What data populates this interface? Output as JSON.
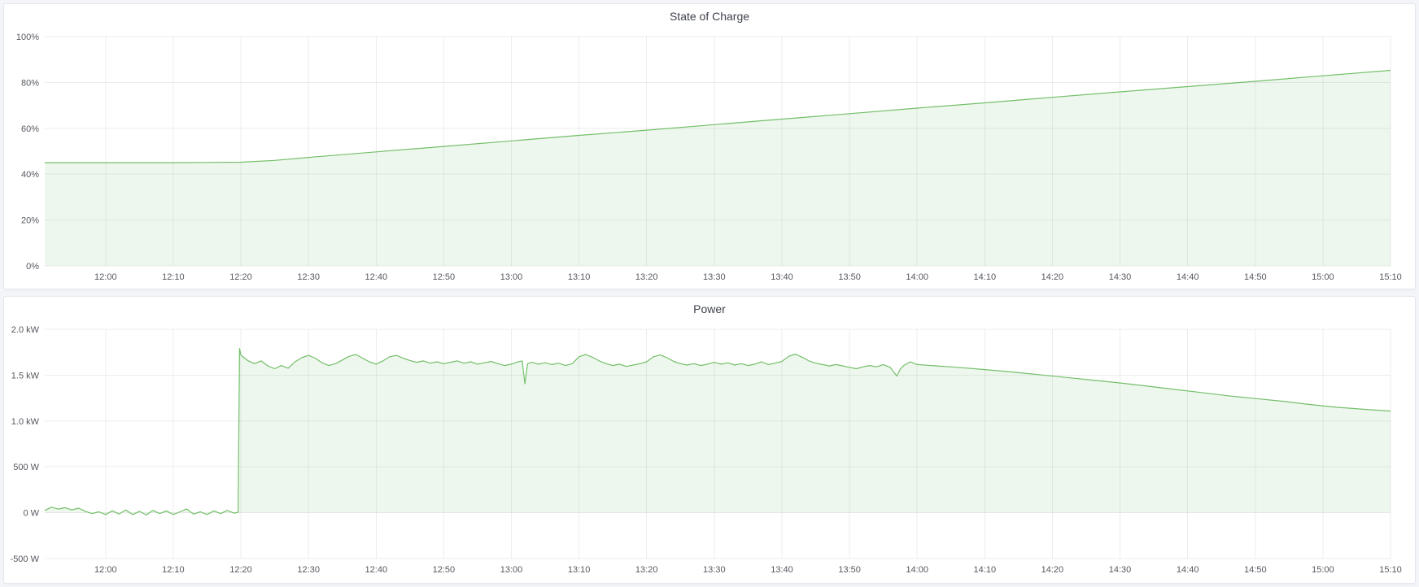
{
  "accent_color": "#73bf69",
  "panel_background": "#ffffff",
  "page_background": "#f4f5f9",
  "chart_data": [
    {
      "type": "area",
      "title": "State of Charge",
      "xlabel": "",
      "ylabel": "",
      "grid": true,
      "legend_position": "none",
      "line_color": "#73bf69",
      "fill_color": "rgba(115,191,105,0.12)",
      "xlim": [
        711,
        910
      ],
      "ylim": [
        0,
        100
      ],
      "fill_baseline": 0,
      "yticks": [
        {
          "v": 0,
          "label": "0%"
        },
        {
          "v": 20,
          "label": "20%"
        },
        {
          "v": 40,
          "label": "40%"
        },
        {
          "v": 60,
          "label": "60%"
        },
        {
          "v": 80,
          "label": "80%"
        },
        {
          "v": 100,
          "label": "100%"
        }
      ],
      "xticks": [
        {
          "v": 720,
          "label": "12:00"
        },
        {
          "v": 730,
          "label": "12:10"
        },
        {
          "v": 740,
          "label": "12:20"
        },
        {
          "v": 750,
          "label": "12:30"
        },
        {
          "v": 760,
          "label": "12:40"
        },
        {
          "v": 770,
          "label": "12:50"
        },
        {
          "v": 780,
          "label": "13:00"
        },
        {
          "v": 790,
          "label": "13:10"
        },
        {
          "v": 800,
          "label": "13:20"
        },
        {
          "v": 810,
          "label": "13:30"
        },
        {
          "v": 820,
          "label": "13:40"
        },
        {
          "v": 830,
          "label": "13:50"
        },
        {
          "v": 840,
          "label": "14:00"
        },
        {
          "v": 850,
          "label": "14:10"
        },
        {
          "v": 860,
          "label": "14:20"
        },
        {
          "v": 870,
          "label": "14:30"
        },
        {
          "v": 880,
          "label": "14:40"
        },
        {
          "v": 890,
          "label": "14:50"
        },
        {
          "v": 900,
          "label": "15:00"
        },
        {
          "v": 910,
          "label": "15:10"
        }
      ],
      "series": [
        {
          "name": "State of Charge (%)",
          "points": [
            [
              711,
              45
            ],
            [
              720,
              45
            ],
            [
              730,
              45
            ],
            [
              740,
              45.2
            ],
            [
              745,
              46
            ],
            [
              750,
              47.3
            ],
            [
              760,
              49.7
            ],
            [
              770,
              52.1
            ],
            [
              780,
              54.5
            ],
            [
              790,
              56.9
            ],
            [
              800,
              59.2
            ],
            [
              810,
              61.6
            ],
            [
              820,
              64.0
            ],
            [
              830,
              66.4
            ],
            [
              840,
              68.8
            ],
            [
              850,
              71.1
            ],
            [
              860,
              73.5
            ],
            [
              870,
              75.9
            ],
            [
              880,
              78.2
            ],
            [
              890,
              80.5
            ],
            [
              900,
              82.9
            ],
            [
              910,
              85.3
            ]
          ]
        }
      ]
    },
    {
      "type": "area",
      "title": "Power",
      "xlabel": "",
      "ylabel": "",
      "grid": true,
      "legend_position": "none",
      "line_color": "#73bf69",
      "fill_color": "rgba(115,191,105,0.12)",
      "xlim": [
        711,
        910
      ],
      "ylim": [
        -500,
        2000
      ],
      "fill_baseline": 0,
      "yticks": [
        {
          "v": -500,
          "label": "-500 W"
        },
        {
          "v": 0,
          "label": "0 W"
        },
        {
          "v": 500,
          "label": "500 W"
        },
        {
          "v": 1000,
          "label": "1.0 kW"
        },
        {
          "v": 1500,
          "label": "1.5 kW"
        },
        {
          "v": 2000,
          "label": "2.0 kW"
        }
      ],
      "xticks": [
        {
          "v": 720,
          "label": "12:00"
        },
        {
          "v": 730,
          "label": "12:10"
        },
        {
          "v": 740,
          "label": "12:20"
        },
        {
          "v": 750,
          "label": "12:30"
        },
        {
          "v": 760,
          "label": "12:40"
        },
        {
          "v": 770,
          "label": "12:50"
        },
        {
          "v": 780,
          "label": "13:00"
        },
        {
          "v": 790,
          "label": "13:10"
        },
        {
          "v": 800,
          "label": "13:20"
        },
        {
          "v": 810,
          "label": "13:30"
        },
        {
          "v": 820,
          "label": "13:40"
        },
        {
          "v": 830,
          "label": "13:50"
        },
        {
          "v": 840,
          "label": "14:00"
        },
        {
          "v": 850,
          "label": "14:10"
        },
        {
          "v": 860,
          "label": "14:20"
        },
        {
          "v": 870,
          "label": "14:30"
        },
        {
          "v": 880,
          "label": "14:40"
        },
        {
          "v": 890,
          "label": "14:50"
        },
        {
          "v": 900,
          "label": "15:00"
        },
        {
          "v": 910,
          "label": "15:10"
        }
      ],
      "series": [
        {
          "name": "Power (W)",
          "points": [
            [
              711,
              25
            ],
            [
              712,
              60
            ],
            [
              713,
              40
            ],
            [
              714,
              55
            ],
            [
              715,
              30
            ],
            [
              716,
              50
            ],
            [
              717,
              15
            ],
            [
              718,
              -10
            ],
            [
              719,
              10
            ],
            [
              720,
              -20
            ],
            [
              721,
              20
            ],
            [
              722,
              -15
            ],
            [
              723,
              30
            ],
            [
              724,
              -20
            ],
            [
              725,
              15
            ],
            [
              726,
              -25
            ],
            [
              727,
              25
            ],
            [
              728,
              -10
            ],
            [
              729,
              20
            ],
            [
              730,
              -20
            ],
            [
              731,
              10
            ],
            [
              732,
              40
            ],
            [
              733,
              -15
            ],
            [
              734,
              10
            ],
            [
              735,
              -20
            ],
            [
              736,
              20
            ],
            [
              737,
              -10
            ],
            [
              738,
              25
            ],
            [
              739,
              -5
            ],
            [
              739.6,
              5
            ],
            [
              739.8,
              1790
            ],
            [
              740,
              1720
            ],
            [
              741,
              1660
            ],
            [
              742,
              1625
            ],
            [
              743,
              1655
            ],
            [
              744,
              1600
            ],
            [
              745,
              1570
            ],
            [
              746,
              1605
            ],
            [
              747,
              1575
            ],
            [
              748,
              1645
            ],
            [
              749,
              1690
            ],
            [
              750,
              1715
            ],
            [
              751,
              1685
            ],
            [
              752,
              1635
            ],
            [
              753,
              1605
            ],
            [
              754,
              1625
            ],
            [
              755,
              1665
            ],
            [
              756,
              1705
            ],
            [
              757,
              1725
            ],
            [
              758,
              1685
            ],
            [
              759,
              1645
            ],
            [
              760,
              1620
            ],
            [
              761,
              1655
            ],
            [
              762,
              1700
            ],
            [
              763,
              1715
            ],
            [
              764,
              1685
            ],
            [
              765,
              1660
            ],
            [
              766,
              1640
            ],
            [
              767,
              1655
            ],
            [
              768,
              1630
            ],
            [
              769,
              1645
            ],
            [
              770,
              1625
            ],
            [
              771,
              1640
            ],
            [
              772,
              1655
            ],
            [
              773,
              1630
            ],
            [
              774,
              1645
            ],
            [
              775,
              1620
            ],
            [
              776,
              1635
            ],
            [
              777,
              1650
            ],
            [
              778,
              1625
            ],
            [
              779,
              1605
            ],
            [
              780,
              1620
            ],
            [
              781,
              1645
            ],
            [
              781.6,
              1655
            ],
            [
              782,
              1405
            ],
            [
              782.4,
              1625
            ],
            [
              783,
              1640
            ],
            [
              784,
              1620
            ],
            [
              785,
              1635
            ],
            [
              786,
              1615
            ],
            [
              787,
              1630
            ],
            [
              788,
              1605
            ],
            [
              789,
              1625
            ],
            [
              790,
              1700
            ],
            [
              791,
              1725
            ],
            [
              792,
              1695
            ],
            [
              793,
              1655
            ],
            [
              794,
              1625
            ],
            [
              795,
              1605
            ],
            [
              796,
              1620
            ],
            [
              797,
              1595
            ],
            [
              798,
              1610
            ],
            [
              799,
              1625
            ],
            [
              800,
              1645
            ],
            [
              801,
              1700
            ],
            [
              802,
              1720
            ],
            [
              803,
              1690
            ],
            [
              804,
              1650
            ],
            [
              805,
              1625
            ],
            [
              806,
              1610
            ],
            [
              807,
              1625
            ],
            [
              808,
              1605
            ],
            [
              809,
              1620
            ],
            [
              810,
              1640
            ],
            [
              811,
              1620
            ],
            [
              812,
              1635
            ],
            [
              813,
              1610
            ],
            [
              814,
              1625
            ],
            [
              815,
              1605
            ],
            [
              816,
              1620
            ],
            [
              817,
              1645
            ],
            [
              818,
              1615
            ],
            [
              819,
              1630
            ],
            [
              820,
              1650
            ],
            [
              821,
              1705
            ],
            [
              822,
              1730
            ],
            [
              823,
              1695
            ],
            [
              824,
              1655
            ],
            [
              825,
              1630
            ],
            [
              826,
              1615
            ],
            [
              827,
              1600
            ],
            [
              828,
              1615
            ],
            [
              829,
              1600
            ],
            [
              830,
              1585
            ],
            [
              831,
              1570
            ],
            [
              832,
              1590
            ],
            [
              833,
              1605
            ],
            [
              834,
              1590
            ],
            [
              835,
              1615
            ],
            [
              836,
              1585
            ],
            [
              837,
              1490
            ],
            [
              837.5,
              1565
            ],
            [
              838,
              1605
            ],
            [
              839,
              1645
            ],
            [
              840,
              1615
            ],
            [
              843,
              1600
            ],
            [
              846,
              1585
            ],
            [
              850,
              1560
            ],
            [
              854,
              1535
            ],
            [
              858,
              1505
            ],
            [
              862,
              1475
            ],
            [
              866,
              1445
            ],
            [
              870,
              1415
            ],
            [
              874,
              1380
            ],
            [
              878,
              1345
            ],
            [
              882,
              1310
            ],
            [
              886,
              1275
            ],
            [
              890,
              1245
            ],
            [
              894,
              1215
            ],
            [
              898,
              1180
            ],
            [
              902,
              1150
            ],
            [
              906,
              1128
            ],
            [
              910,
              1108
            ]
          ]
        }
      ]
    }
  ]
}
